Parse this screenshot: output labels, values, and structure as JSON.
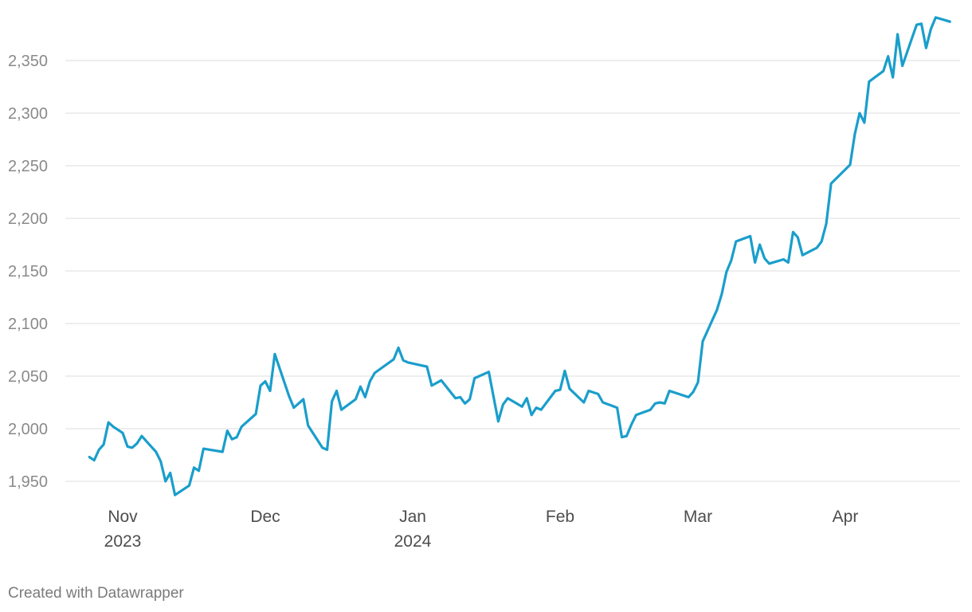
{
  "footer": {
    "credit": "Created with Datawrapper"
  },
  "chart_data": {
    "type": "line",
    "color": "#1a9ecb",
    "grid": true,
    "y_axis": {
      "ticks": [
        1950,
        2000,
        2050,
        2100,
        2150,
        2200,
        2250,
        2300,
        2350
      ],
      "tick_labels": [
        "1,950",
        "2,000",
        "2,050",
        "2,100",
        "2,150",
        "2,200",
        "2,250",
        "2,300",
        "2,350"
      ],
      "range": [
        1935,
        2395
      ]
    },
    "x_axis": {
      "range": [
        "2023-10-24",
        "2024-04-25"
      ],
      "ticks": [
        {
          "date": "2023-11-01",
          "label": "Nov",
          "sublabel": "2023"
        },
        {
          "date": "2023-12-01",
          "label": "Dec",
          "sublabel": ""
        },
        {
          "date": "2024-01-01",
          "label": "Jan",
          "sublabel": "2024"
        },
        {
          "date": "2024-02-01",
          "label": "Feb",
          "sublabel": ""
        },
        {
          "date": "2024-03-01",
          "label": "Mar",
          "sublabel": ""
        },
        {
          "date": "2024-04-01",
          "label": "Apr",
          "sublabel": ""
        }
      ]
    },
    "series": [
      {
        "points": [
          [
            "2023-10-25",
            1973
          ],
          [
            "2023-10-26",
            1970
          ],
          [
            "2023-10-27",
            1980
          ],
          [
            "2023-10-28",
            1985
          ],
          [
            "2023-10-29",
            2006
          ],
          [
            "2023-10-30",
            2002
          ],
          [
            "2023-11-01",
            1996
          ],
          [
            "2023-11-02",
            1983
          ],
          [
            "2023-11-03",
            1982
          ],
          [
            "2023-11-04",
            1986
          ],
          [
            "2023-11-05",
            1993
          ],
          [
            "2023-11-07",
            1983
          ],
          [
            "2023-11-08",
            1978
          ],
          [
            "2023-11-09",
            1969
          ],
          [
            "2023-11-10",
            1950
          ],
          [
            "2023-11-11",
            1958
          ],
          [
            "2023-11-12",
            1937
          ],
          [
            "2023-11-15",
            1946
          ],
          [
            "2023-11-16",
            1963
          ],
          [
            "2023-11-17",
            1960
          ],
          [
            "2023-11-18",
            1981
          ],
          [
            "2023-11-22",
            1978
          ],
          [
            "2023-11-23",
            1998
          ],
          [
            "2023-11-24",
            1990
          ],
          [
            "2023-11-25",
            1992
          ],
          [
            "2023-11-26",
            2002
          ],
          [
            "2023-11-29",
            2014
          ],
          [
            "2023-11-30",
            2041
          ],
          [
            "2023-12-01",
            2045
          ],
          [
            "2023-12-02",
            2036
          ],
          [
            "2023-12-03",
            2071
          ],
          [
            "2023-12-06",
            2031
          ],
          [
            "2023-12-07",
            2020
          ],
          [
            "2023-12-09",
            2028
          ],
          [
            "2023-12-10",
            2003
          ],
          [
            "2023-12-13",
            1982
          ],
          [
            "2023-12-14",
            1980
          ],
          [
            "2023-12-15",
            2026
          ],
          [
            "2023-12-16",
            2036
          ],
          [
            "2023-12-17",
            2018
          ],
          [
            "2023-12-20",
            2028
          ],
          [
            "2023-12-21",
            2040
          ],
          [
            "2023-12-22",
            2030
          ],
          [
            "2023-12-23",
            2045
          ],
          [
            "2023-12-24",
            2053
          ],
          [
            "2023-12-28",
            2066
          ],
          [
            "2023-12-29",
            2077
          ],
          [
            "2023-12-30",
            2065
          ],
          [
            "2023-12-31",
            2063
          ],
          [
            "2024-01-03",
            2060
          ],
          [
            "2024-01-04",
            2059
          ],
          [
            "2024-01-05",
            2041
          ],
          [
            "2024-01-07",
            2046
          ],
          [
            "2024-01-10",
            2029
          ],
          [
            "2024-01-11",
            2030
          ],
          [
            "2024-01-12",
            2024
          ],
          [
            "2024-01-13",
            2028
          ],
          [
            "2024-01-14",
            2048
          ],
          [
            "2024-01-17",
            2054
          ],
          [
            "2024-01-19",
            2007
          ],
          [
            "2024-01-20",
            2023
          ],
          [
            "2024-01-21",
            2029
          ],
          [
            "2024-01-24",
            2021
          ],
          [
            "2024-01-25",
            2029
          ],
          [
            "2024-01-26",
            2013
          ],
          [
            "2024-01-27",
            2020
          ],
          [
            "2024-01-28",
            2018
          ],
          [
            "2024-01-31",
            2036
          ],
          [
            "2024-02-01",
            2037
          ],
          [
            "2024-02-02",
            2055
          ],
          [
            "2024-02-03",
            2038
          ],
          [
            "2024-02-06",
            2025
          ],
          [
            "2024-02-07",
            2036
          ],
          [
            "2024-02-09",
            2033
          ],
          [
            "2024-02-10",
            2025
          ],
          [
            "2024-02-13",
            2020
          ],
          [
            "2024-02-14",
            1992
          ],
          [
            "2024-02-15",
            1993
          ],
          [
            "2024-02-16",
            2004
          ],
          [
            "2024-02-17",
            2013
          ],
          [
            "2024-02-20",
            2018
          ],
          [
            "2024-02-21",
            2024
          ],
          [
            "2024-02-22",
            2025
          ],
          [
            "2024-02-23",
            2024
          ],
          [
            "2024-02-24",
            2036
          ],
          [
            "2024-02-28",
            2030
          ],
          [
            "2024-02-29",
            2035
          ],
          [
            "2024-03-01",
            2044
          ],
          [
            "2024-03-02",
            2083
          ],
          [
            "2024-03-05",
            2113
          ],
          [
            "2024-03-06",
            2128
          ],
          [
            "2024-03-07",
            2149
          ],
          [
            "2024-03-08",
            2160
          ],
          [
            "2024-03-09",
            2178
          ],
          [
            "2024-03-12",
            2183
          ],
          [
            "2024-03-13",
            2158
          ],
          [
            "2024-03-14",
            2175
          ],
          [
            "2024-03-15",
            2162
          ],
          [
            "2024-03-16",
            2157
          ],
          [
            "2024-03-19",
            2161
          ],
          [
            "2024-03-20",
            2158
          ],
          [
            "2024-03-21",
            2187
          ],
          [
            "2024-03-22",
            2182
          ],
          [
            "2024-03-23",
            2165
          ],
          [
            "2024-03-26",
            2172
          ],
          [
            "2024-03-27",
            2178
          ],
          [
            "2024-03-28",
            2195
          ],
          [
            "2024-03-29",
            2233
          ],
          [
            "2024-04-02",
            2251
          ],
          [
            "2024-04-03",
            2280
          ],
          [
            "2024-04-04",
            2300
          ],
          [
            "2024-04-05",
            2291
          ],
          [
            "2024-04-06",
            2330
          ],
          [
            "2024-04-09",
            2340
          ],
          [
            "2024-04-10",
            2354
          ],
          [
            "2024-04-11",
            2334
          ],
          [
            "2024-04-12",
            2375
          ],
          [
            "2024-04-13",
            2345
          ],
          [
            "2024-04-16",
            2384
          ],
          [
            "2024-04-17",
            2385
          ],
          [
            "2024-04-18",
            2362
          ],
          [
            "2024-04-19",
            2380
          ],
          [
            "2024-04-20",
            2391
          ],
          [
            "2024-04-23",
            2387
          ]
        ]
      }
    ]
  }
}
